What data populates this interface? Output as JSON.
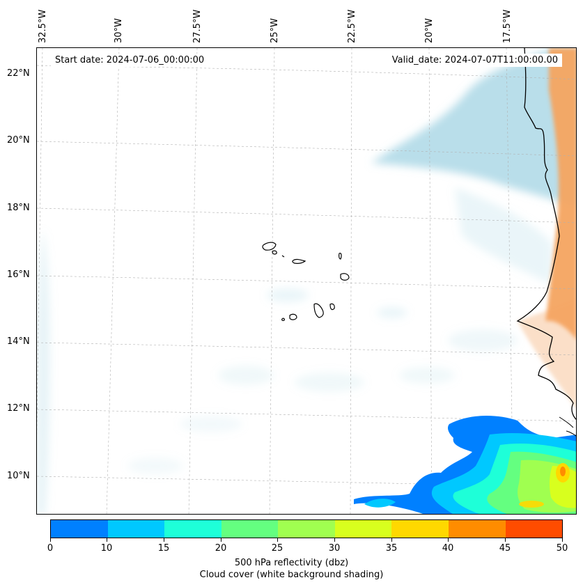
{
  "map": {
    "start_date": "Start date: 2024-07-06_00:00:00",
    "valid_date": "Valid_date: 2024-07-07T11:00:00.00",
    "longitude_labels": [
      "32.5°W",
      "30°W",
      "27.5°W",
      "25°W",
      "22.5°W",
      "20°W",
      "17.5°W"
    ],
    "latitude_labels": [
      "22°N",
      "20°N",
      "18°N",
      "16°N",
      "14°N",
      "12°N",
      "10°N"
    ],
    "features": {
      "cape_verde_islands": "outline",
      "west_africa_coastline": "outline",
      "cloud_cover_color": "#add8e6",
      "land_shading_color": "#f4a460"
    }
  },
  "colorbar": {
    "tick_labels": [
      "0",
      "10",
      "15",
      "20",
      "25",
      "30",
      "35",
      "40",
      "45",
      "50"
    ],
    "colors": [
      "#0080ff",
      "#00c8ff",
      "#1effd8",
      "#64ff80",
      "#a0ff50",
      "#d8ff1e",
      "#ffd800",
      "#ff8c00",
      "#ff4c00"
    ],
    "label_line1": "500 hPa reflectivity (dbz)",
    "label_line2": "Cloud cover (white background shading)"
  }
}
